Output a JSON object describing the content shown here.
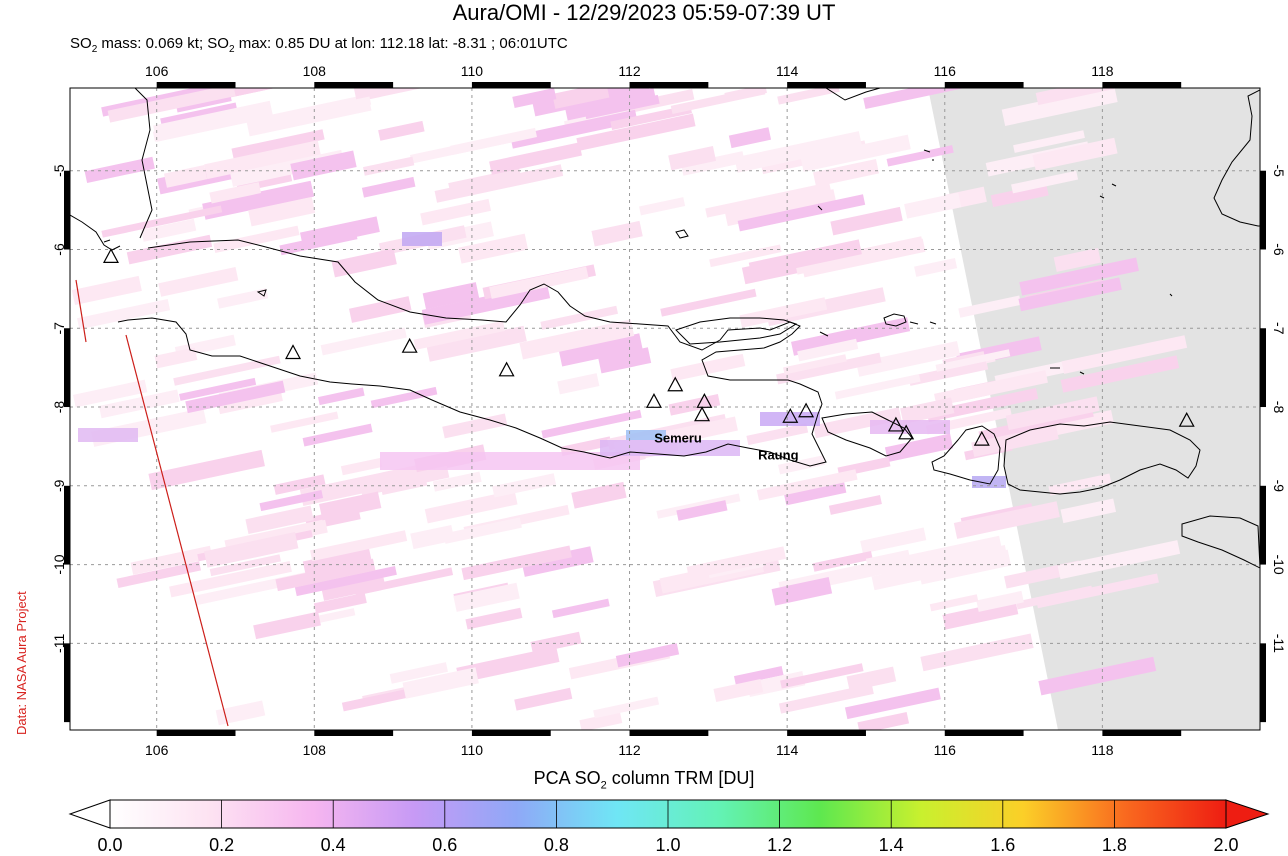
{
  "title": "Aura/OMI - 12/29/2023 05:59-07:39 UT",
  "subtitle": {
    "prefix": "SO",
    "sub1": "2",
    "mid": " mass: 0.069 kt; SO",
    "sub2": "2",
    "rest": " max: 0.85 DU at lon: 112.18 lat: -8.31 ; 06:01UTC"
  },
  "credit": "Data: NASA Aura Project",
  "map": {
    "lon_range": [
      104.9,
      120.0
    ],
    "lat_range": [
      -12.1,
      -3.95
    ],
    "lon_ticks": [
      "106",
      "108",
      "110",
      "112",
      "114",
      "116",
      "118"
    ],
    "lon_tick_values": [
      106,
      108,
      110,
      112,
      114,
      116,
      118
    ],
    "lat_ticks": [
      "-5",
      "-6",
      "-7",
      "-8",
      "-9",
      "-10",
      "-11"
    ],
    "lat_tick_values": [
      -5,
      -6,
      -7,
      -8,
      -9,
      -10,
      -11
    ],
    "no_data_color": "#e3e3e3",
    "volcano_labels": [
      {
        "name": "Semeru",
        "lon": 112.92,
        "lat": -8.11
      },
      {
        "name": "Raung",
        "lon": 114.04,
        "lat": -8.13
      }
    ],
    "volcanoes": [
      [
        105.42,
        -6.1
      ],
      [
        107.73,
        -7.32
      ],
      [
        109.21,
        -7.24
      ],
      [
        110.44,
        -7.54
      ],
      [
        112.31,
        -7.94
      ],
      [
        112.58,
        -7.73
      ],
      [
        112.95,
        -7.94
      ],
      [
        112.92,
        -8.11
      ],
      [
        114.04,
        -8.13
      ],
      [
        114.24,
        -8.06
      ],
      [
        115.38,
        -8.24
      ],
      [
        115.51,
        -8.34
      ],
      [
        116.47,
        -8.42
      ],
      [
        119.07,
        -8.18
      ]
    ]
  },
  "colorbar": {
    "title_prefix": "PCA SO",
    "title_sub": "2",
    "title_rest": " column TRM [DU]",
    "ticks": [
      "0.0",
      "0.2",
      "0.4",
      "0.6",
      "0.8",
      "1.0",
      "1.2",
      "1.4",
      "1.6",
      "1.8",
      "2.0"
    ],
    "range": [
      0.0,
      2.0
    ],
    "colors": [
      "#ffffff",
      "#fde2f2",
      "#f6b6f0",
      "#c79af5",
      "#8fa8f7",
      "#6fe6f5",
      "#63f2b6",
      "#5ee84f",
      "#c9f02e",
      "#fbcf28",
      "#f96a1f",
      "#ee1d12"
    ]
  }
}
